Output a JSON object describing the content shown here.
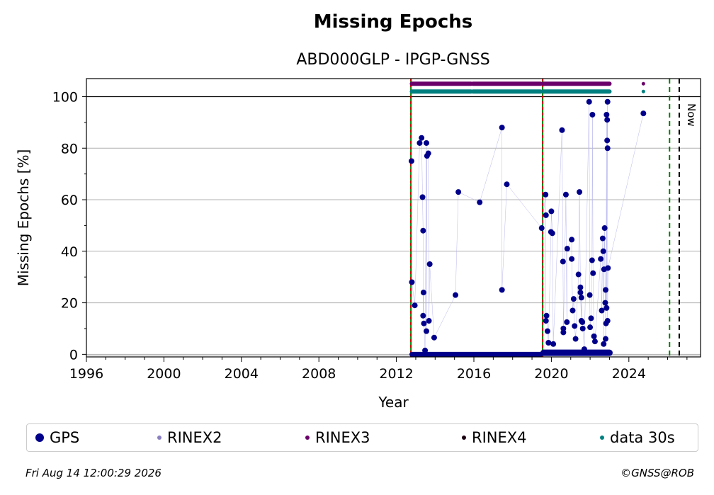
{
  "chart_data": {
    "type": "scatter",
    "title": "Missing Epochs",
    "subtitle": "ABD000GLP - IPGP-GNSS",
    "xlabel": "Year",
    "ylabel": "Missing Epochs [%]",
    "xlim": [
      1996,
      2027.7
    ],
    "ylim": [
      -1,
      107
    ],
    "x_ticks": [
      "1996",
      "2000",
      "2004",
      "2008",
      "2012",
      "2016",
      "2020",
      "2024"
    ],
    "y_ticks": [
      "0",
      "20",
      "40",
      "60",
      "80",
      "100"
    ],
    "grid": "horizontal",
    "vertical_lines": [
      {
        "x": 2012.75,
        "style": "red-green-dashed"
      },
      {
        "x": 2019.55,
        "style": "red-green-dashed"
      },
      {
        "x": 2026.1,
        "style": "green-dashed"
      },
      {
        "x": 2026.6,
        "style": "black-dashed",
        "label": "Now"
      }
    ],
    "availability_bars": [
      {
        "name": "RINEX3",
        "y": 105,
        "color": "#6a006a",
        "ranges": [
          [
            2012.8,
            2015.85
          ],
          [
            2015.95,
            2019.45
          ],
          [
            2019.6,
            2023.0
          ]
        ],
        "extra_points": [
          2024.75
        ]
      },
      {
        "name": "data 30s",
        "y": 102,
        "color": "#008080",
        "ranges": [
          [
            2012.8,
            2015.85
          ],
          [
            2015.95,
            2019.45
          ],
          [
            2019.6,
            2023.0
          ]
        ],
        "extra_points": [
          2024.75
        ]
      }
    ],
    "series": [
      {
        "name": "GPS",
        "color": "#00008b",
        "points": [
          [
            2012.78,
            75
          ],
          [
            2012.8,
            28
          ],
          [
            2012.95,
            19
          ],
          [
            2013.2,
            82
          ],
          [
            2013.3,
            84
          ],
          [
            2013.35,
            61
          ],
          [
            2013.38,
            48
          ],
          [
            2013.4,
            24
          ],
          [
            2013.38,
            15
          ],
          [
            2013.42,
            12
          ],
          [
            2013.48,
            1.5
          ],
          [
            2013.55,
            82
          ],
          [
            2013.58,
            77
          ],
          [
            2013.65,
            78
          ],
          [
            2013.55,
            9
          ],
          [
            2013.68,
            13
          ],
          [
            2013.72,
            35
          ],
          [
            2013.95,
            6.5
          ],
          [
            2015.05,
            23
          ],
          [
            2015.2,
            63
          ],
          [
            2016.3,
            59
          ],
          [
            2017.45,
            88
          ],
          [
            2017.45,
            25
          ],
          [
            2017.7,
            66
          ],
          [
            2019.5,
            49
          ],
          [
            2019.7,
            62
          ],
          [
            2019.72,
            54
          ],
          [
            2019.75,
            15
          ],
          [
            2019.72,
            13
          ],
          [
            2019.8,
            9
          ],
          [
            2019.85,
            4.5
          ],
          [
            2019.98,
            47.5
          ],
          [
            2020.0,
            55.5
          ],
          [
            2020.05,
            47
          ],
          [
            2020.1,
            4
          ],
          [
            2020.55,
            87
          ],
          [
            2020.6,
            36
          ],
          [
            2020.62,
            10
          ],
          [
            2020.62,
            8.5
          ],
          [
            2020.75,
            62
          ],
          [
            2020.82,
            41
          ],
          [
            2020.8,
            12.5
          ],
          [
            2021.05,
            44.5
          ],
          [
            2021.05,
            37
          ],
          [
            2021.1,
            17
          ],
          [
            2021.15,
            21.5
          ],
          [
            2021.2,
            11
          ],
          [
            2021.25,
            6
          ],
          [
            2021.45,
            63
          ],
          [
            2021.4,
            31
          ],
          [
            2021.5,
            26
          ],
          [
            2021.5,
            24
          ],
          [
            2021.55,
            13
          ],
          [
            2021.55,
            22
          ],
          [
            2021.6,
            12.5
          ],
          [
            2021.62,
            10
          ],
          [
            2021.7,
            2
          ],
          [
            2021.95,
            98
          ],
          [
            2021.98,
            23
          ],
          [
            2022.0,
            10.5
          ],
          [
            2022.05,
            14
          ],
          [
            2022.1,
            36.5
          ],
          [
            2022.12,
            93
          ],
          [
            2022.15,
            31.5
          ],
          [
            2022.2,
            7
          ],
          [
            2022.25,
            5
          ],
          [
            2022.55,
            37
          ],
          [
            2022.6,
            17
          ],
          [
            2022.65,
            45
          ],
          [
            2022.68,
            40
          ],
          [
            2022.72,
            33
          ],
          [
            2022.75,
            49
          ],
          [
            2022.78,
            20
          ],
          [
            2022.8,
            25
          ],
          [
            2022.82,
            12
          ],
          [
            2022.85,
            93
          ],
          [
            2022.88,
            91
          ],
          [
            2022.9,
            98
          ],
          [
            2022.88,
            83
          ],
          [
            2022.9,
            80
          ],
          [
            2022.92,
            33.5
          ],
          [
            2022.85,
            18
          ],
          [
            2022.9,
            13
          ],
          [
            2022.8,
            6
          ],
          [
            2022.7,
            4
          ],
          [
            2024.75,
            93.5
          ]
        ]
      }
    ],
    "legend": {
      "placement": "bottom",
      "entries": [
        {
          "label": "GPS",
          "color": "#00008b"
        },
        {
          "label": "RINEX2",
          "color": "#8a7fc0"
        },
        {
          "label": "RINEX3",
          "color": "#6a006a"
        },
        {
          "label": "RINEX4",
          "color": "#1a0010"
        },
        {
          "label": "data 30s",
          "color": "#008080"
        }
      ]
    },
    "now_label": "Now"
  },
  "footer": {
    "timestamp": "Fri Aug 14 12:00:29 2026",
    "copyright": "©GNSS@ROB"
  }
}
